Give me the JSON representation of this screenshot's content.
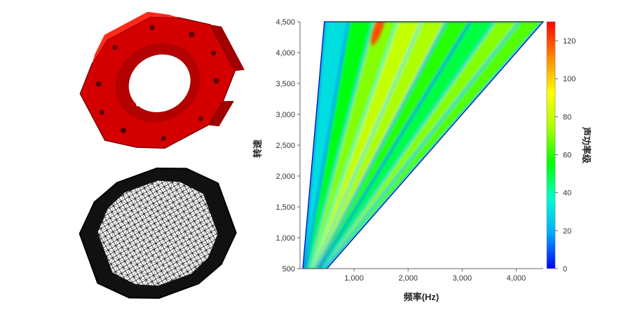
{
  "chart_data": {
    "type": "heatmap",
    "subtype": "campbell-order-map",
    "title": "",
    "xlabel": "频率(Hz)",
    "ylabel": "转速",
    "colorbar_label": "声功率级",
    "xlim": [
      0,
      4500
    ],
    "ylim": [
      500,
      4500
    ],
    "clim": [
      0,
      130
    ],
    "x_ticks": [
      1000,
      2000,
      3000,
      4000
    ],
    "x_tick_labels": [
      "1,000",
      "2,000",
      "3,000",
      "4,000"
    ],
    "y_ticks": [
      500,
      1000,
      1500,
      2000,
      2500,
      3000,
      3500,
      4000,
      4500
    ],
    "y_tick_labels": [
      "500",
      "1,000",
      "1,500",
      "2,000",
      "2,500",
      "3,000",
      "3,500",
      "4,000",
      "4,500"
    ],
    "colorbar_ticks": [
      0,
      20,
      40,
      60,
      80,
      100,
      120
    ],
    "colorbar_tick_labels": [
      "0",
      "20",
      "40",
      "60",
      "80",
      "100",
      "120"
    ],
    "colormap": [
      "#0000ff",
      "#00aaff",
      "#00ffcc",
      "#00ff00",
      "#aaff00",
      "#ffff00",
      "#ff8800",
      "#ff0000"
    ],
    "orders": [
      6,
      12,
      18,
      24,
      30,
      36,
      42,
      48,
      54,
      60
    ],
    "band_levels": [
      30,
      55,
      70,
      80,
      75,
      60,
      50,
      70,
      65,
      60
    ],
    "hot_spot": {
      "frequency": 1450,
      "speed": 4400,
      "level": 120
    },
    "grid": false,
    "background": "#ffffff"
  },
  "images": {
    "stator_3d": {
      "icon": "stator-red-solid-icon",
      "color": "#d40000"
    },
    "stator_mesh": {
      "icon": "stator-mesh-icon",
      "color": "#000000"
    }
  }
}
